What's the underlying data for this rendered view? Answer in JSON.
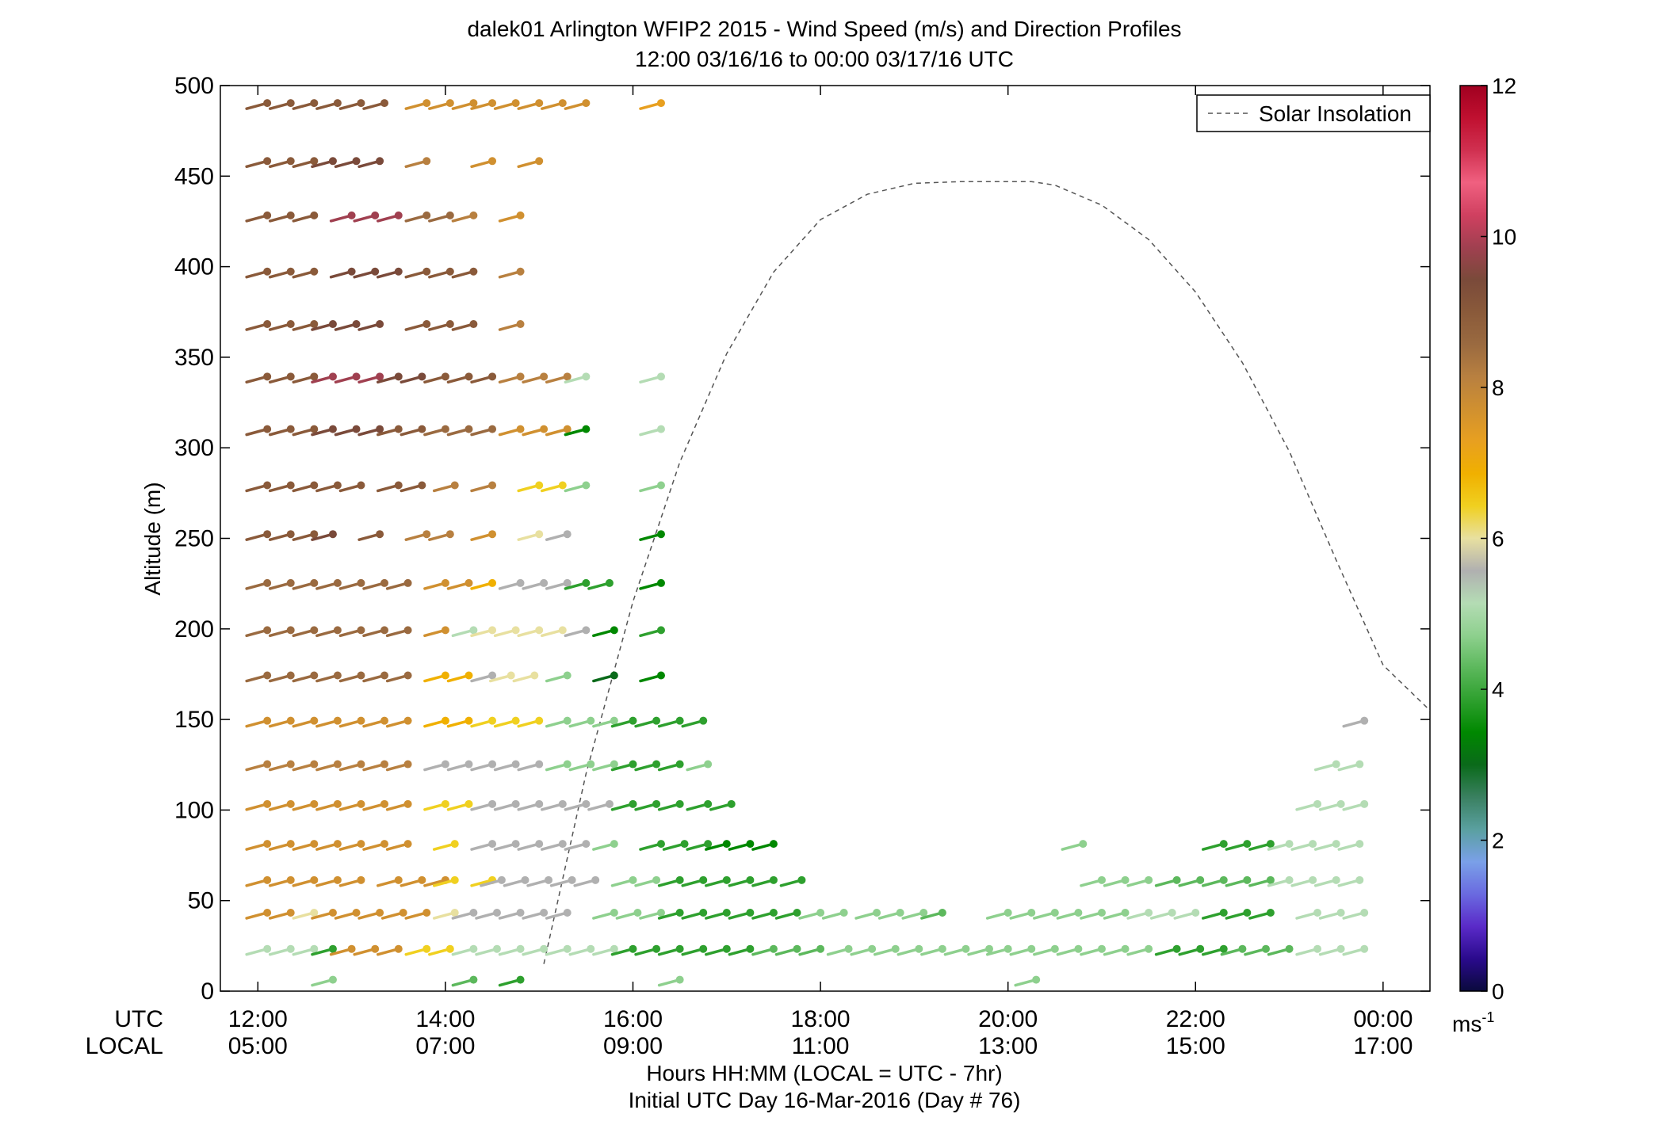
{
  "chart_data": {
    "type": "scatter",
    "title": "dalek01 Arlington WFIP2 2015 - Wind Speed (m/s) and Direction Profiles",
    "subtitle": "12:00 03/16/16 to 00:00 03/17/16  UTC",
    "ylabel": "Altitude (m)",
    "xlabel": "Hours HH:MM  (LOCAL = UTC - 7hr)",
    "xlabel2": "Initial UTC Day 16-Mar-2016 (Day # 76)",
    "row_label_utc": "UTC",
    "row_label_local": "LOCAL",
    "xlim": [
      11.6,
      24.5
    ],
    "ylim": [
      0,
      500
    ],
    "x_ticks": [
      12,
      14,
      16,
      18,
      20,
      22,
      24
    ],
    "x_tick_labels_utc": [
      "12:00",
      "14:00",
      "16:00",
      "18:00",
      "20:00",
      "22:00",
      "00:00"
    ],
    "x_tick_labels_local": [
      "05:00",
      "07:00",
      "09:00",
      "11:00",
      "13:00",
      "15:00",
      "17:00"
    ],
    "y_ticks": [
      0,
      50,
      100,
      150,
      200,
      250,
      300,
      350,
      400,
      450,
      500
    ],
    "y_tick_labels": [
      "0",
      "50",
      "100",
      "150",
      "200",
      "250",
      "300",
      "350",
      "400",
      "450",
      "500"
    ],
    "legend": {
      "label": "Solar Insolation",
      "placement": "top-right",
      "line_color": "#555555"
    },
    "colorbar": {
      "min": 0,
      "max": 12,
      "ticks": [
        0,
        2,
        4,
        6,
        8,
        10,
        12
      ],
      "tick_labels": [
        "0",
        "2",
        "4",
        "6",
        "8",
        "10",
        "12"
      ],
      "unit_label": "ms",
      "unit_exponent": "-1",
      "colors": [
        "#0a0a3c",
        "#2a0a8c",
        "#5a2ac8",
        "#6a6ae0",
        "#7aa0e8",
        "#5aa0a0",
        "#3a8060",
        "#0a6a1a",
        "#008800",
        "#2ea02e",
        "#5cb85c",
        "#8ed08e",
        "#b4dcb4",
        "#b0b0b0",
        "#e8e0a0",
        "#f0d020",
        "#f0b000",
        "#e8a020",
        "#d09030",
        "#b88040",
        "#9a6a40",
        "#8a5a3a",
        "#7a4a3a",
        "#a04050",
        "#d04060",
        "#f06080",
        "#d03050",
        "#c01030",
        "#a00020"
      ]
    },
    "solar_insolation": {
      "x": [
        15.05,
        15.5,
        16.0,
        16.5,
        17.0,
        17.5,
        18.0,
        18.5,
        19.0,
        19.5,
        20.0,
        20.25,
        20.5,
        21.0,
        21.5,
        22.0,
        22.5,
        23.0,
        23.5,
        24.0,
        24.5
      ],
      "y": [
        15,
        120,
        215,
        292,
        352,
        397,
        426,
        440,
        446,
        447,
        447,
        447,
        445,
        434,
        415,
        386,
        347,
        298,
        238,
        180,
        155
      ]
    },
    "altitudes": [
      5,
      22,
      42,
      60,
      80,
      102,
      124,
      148,
      173,
      198,
      224,
      251,
      278,
      309,
      338,
      367,
      396,
      427,
      457,
      489
    ],
    "barbs": [
      {
        "alt": 5,
        "ranges": [
          [
            12.8,
            12.8,
            4.8
          ],
          [
            14.3,
            14.5,
            4.2
          ],
          [
            14.8,
            14.8,
            3.9
          ],
          [
            16.5,
            16.5,
            4.6
          ],
          [
            20.3,
            20.3,
            4.6
          ]
        ]
      },
      {
        "alt": 22,
        "ranges": [
          [
            12.1,
            12.7,
            5.2
          ],
          [
            12.8,
            12.8,
            4.0
          ],
          [
            13.0,
            13.6,
            7.5
          ],
          [
            13.8,
            14.1,
            6.3
          ],
          [
            14.3,
            15.8,
            5.1
          ],
          [
            16.0,
            17.3,
            3.7
          ],
          [
            17.5,
            18.0,
            4.1
          ],
          [
            18.3,
            19.8,
            4.8
          ],
          [
            20.0,
            21.5,
            4.7
          ],
          [
            21.8,
            22.3,
            3.9
          ],
          [
            22.5,
            23.0,
            4.4
          ],
          [
            23.3,
            23.8,
            5.2
          ]
        ]
      },
      {
        "alt": 42,
        "ranges": [
          [
            12.1,
            12.4,
            7.6
          ],
          [
            12.6,
            12.6,
            6.0
          ],
          [
            12.8,
            13.8,
            7.9
          ],
          [
            14.1,
            14.1,
            6.2
          ],
          [
            14.3,
            15.5,
            5.4
          ],
          [
            15.8,
            16.3,
            4.9
          ],
          [
            16.5,
            17.8,
            4.0
          ],
          [
            18.0,
            18.3,
            4.6
          ],
          [
            18.6,
            19.1,
            4.8
          ],
          [
            19.3,
            19.4,
            4.1
          ],
          [
            20.0,
            21.3,
            4.6
          ],
          [
            21.5,
            22.0,
            5.1
          ],
          [
            22.3,
            23.0,
            3.9
          ],
          [
            23.3,
            23.8,
            5.1
          ]
        ]
      },
      {
        "alt": 60,
        "ranges": [
          [
            12.1,
            13.3,
            7.6
          ],
          [
            13.5,
            14.0,
            7.9
          ],
          [
            14.1,
            14.3,
            6.5
          ],
          [
            14.5,
            14.5,
            6.4
          ],
          [
            14.6,
            15.8,
            5.6
          ],
          [
            16.0,
            16.3,
            4.6
          ],
          [
            16.5,
            17.5,
            3.7
          ],
          [
            17.8,
            17.8,
            4.0
          ],
          [
            21.0,
            21.5,
            4.8
          ],
          [
            21.8,
            22.8,
            4.1
          ],
          [
            23.0,
            23.8,
            5.2
          ]
        ]
      },
      {
        "alt": 80,
        "ranges": [
          [
            12.1,
            13.8,
            7.6
          ],
          [
            14.1,
            14.3,
            6.5
          ],
          [
            14.5,
            15.5,
            5.6
          ],
          [
            15.8,
            16.0,
            4.9
          ],
          [
            16.3,
            16.8,
            3.9
          ],
          [
            17.0,
            17.5,
            3.6
          ],
          [
            20.8,
            20.8,
            4.6
          ],
          [
            22.3,
            22.8,
            3.9
          ],
          [
            23.0,
            23.8,
            5.1
          ]
        ]
      },
      {
        "alt": 102,
        "ranges": [
          [
            12.1,
            13.8,
            7.8
          ],
          [
            14.0,
            14.3,
            6.5
          ],
          [
            14.5,
            15.8,
            5.6
          ],
          [
            16.0,
            16.5,
            4.0
          ],
          [
            16.8,
            17.1,
            3.7
          ],
          [
            23.3,
            23.8,
            5.2
          ]
        ]
      },
      {
        "alt": 124,
        "ranges": [
          [
            12.1,
            13.8,
            8.1
          ],
          [
            14.0,
            15.0,
            5.6
          ],
          [
            15.3,
            15.8,
            4.8
          ],
          [
            16.0,
            16.5,
            4.0
          ],
          [
            16.8,
            16.8,
            4.6
          ],
          [
            23.5,
            23.8,
            5.3
          ]
        ]
      },
      {
        "alt": 148,
        "ranges": [
          [
            12.1,
            13.8,
            7.9
          ],
          [
            14.0,
            14.3,
            6.8
          ],
          [
            14.5,
            15.0,
            6.4
          ],
          [
            15.3,
            15.8,
            4.8
          ],
          [
            16.0,
            16.8,
            3.9
          ],
          [
            23.8,
            23.8,
            5.4
          ]
        ]
      },
      {
        "alt": 173,
        "ranges": [
          [
            12.1,
            13.8,
            8.6
          ],
          [
            14.0,
            14.3,
            6.8
          ],
          [
            14.5,
            14.5,
            5.6
          ],
          [
            14.7,
            15.0,
            6.2
          ],
          [
            15.3,
            15.5,
            4.6
          ],
          [
            15.8,
            15.8,
            2.8
          ],
          [
            16.3,
            16.5,
            3.6
          ]
        ]
      },
      {
        "alt": 198,
        "ranges": [
          [
            12.1,
            13.8,
            8.5
          ],
          [
            14.0,
            14.1,
            7.8
          ],
          [
            14.3,
            14.3,
            5.0
          ],
          [
            14.5,
            14.8,
            6.2
          ],
          [
            15.0,
            15.3,
            5.9
          ],
          [
            15.5,
            15.5,
            5.4
          ],
          [
            15.8,
            15.8,
            3.6
          ],
          [
            16.3,
            16.5,
            3.7
          ]
        ]
      },
      {
        "alt": 224,
        "ranges": [
          [
            12.1,
            13.8,
            8.6
          ],
          [
            14.0,
            14.3,
            7.5
          ],
          [
            14.5,
            14.5,
            6.8
          ],
          [
            14.8,
            15.3,
            5.6
          ],
          [
            15.5,
            15.8,
            4.0
          ],
          [
            16.3,
            16.5,
            3.6
          ]
        ]
      },
      {
        "alt": 251,
        "ranges": [
          [
            12.1,
            12.6,
            9.0
          ],
          [
            12.8,
            12.8,
            9.6
          ],
          [
            13.3,
            13.3,
            9.0
          ],
          [
            13.8,
            14.1,
            8.0
          ],
          [
            14.5,
            14.5,
            7.8
          ],
          [
            15.0,
            15.0,
            6.0
          ],
          [
            15.3,
            15.3,
            5.6
          ],
          [
            16.3,
            16.3,
            3.6
          ]
        ]
      },
      {
        "alt": 278,
        "ranges": [
          [
            12.1,
            13.3,
            9.0
          ],
          [
            13.5,
            13.8,
            8.8
          ],
          [
            14.1,
            14.1,
            8.2
          ],
          [
            14.5,
            14.5,
            8.0
          ],
          [
            15.0,
            15.3,
            6.6
          ],
          [
            15.5,
            15.5,
            4.6
          ],
          [
            16.3,
            16.5,
            4.8
          ]
        ]
      },
      {
        "alt": 309,
        "ranges": [
          [
            12.1,
            12.6,
            9.0
          ],
          [
            12.8,
            13.3,
            9.6
          ],
          [
            13.5,
            13.8,
            9.2
          ],
          [
            14.0,
            14.5,
            8.6
          ],
          [
            14.8,
            15.3,
            7.5
          ],
          [
            15.5,
            15.5,
            3.6
          ],
          [
            16.3,
            16.5,
            5.0
          ]
        ]
      },
      {
        "alt": 338,
        "ranges": [
          [
            12.1,
            12.6,
            9.2
          ],
          [
            12.8,
            13.3,
            9.8
          ],
          [
            13.5,
            13.8,
            9.4
          ],
          [
            14.0,
            14.5,
            8.8
          ],
          [
            14.8,
            15.3,
            8.0
          ],
          [
            15.5,
            15.5,
            5.2
          ],
          [
            16.3,
            16.5,
            5.0
          ]
        ]
      },
      {
        "alt": 367,
        "ranges": [
          [
            12.1,
            12.6,
            9.2
          ],
          [
            12.8,
            13.5,
            9.6
          ],
          [
            13.8,
            14.5,
            9.0
          ],
          [
            14.8,
            15.0,
            8.2
          ]
        ]
      },
      {
        "alt": 396,
        "ranges": [
          [
            12.1,
            12.8,
            9.2
          ],
          [
            13.0,
            13.5,
            9.6
          ],
          [
            13.8,
            14.5,
            8.8
          ],
          [
            14.8,
            15.0,
            8.2
          ]
        ]
      },
      {
        "alt": 427,
        "ranges": [
          [
            12.1,
            12.8,
            9.2
          ],
          [
            13.0,
            13.5,
            9.8
          ],
          [
            13.8,
            14.1,
            8.4
          ],
          [
            14.3,
            14.5,
            8.0
          ],
          [
            14.8,
            15.0,
            7.8
          ]
        ]
      },
      {
        "alt": 457,
        "ranges": [
          [
            12.1,
            12.6,
            9.0
          ],
          [
            12.8,
            13.3,
            9.6
          ],
          [
            13.8,
            13.8,
            8.0
          ],
          [
            14.5,
            14.5,
            7.8
          ],
          [
            15.0,
            15.0,
            7.6
          ]
        ]
      },
      {
        "alt": 489,
        "ranges": [
          [
            12.1,
            13.5,
            9.2
          ],
          [
            13.8,
            14.3,
            7.8
          ],
          [
            14.5,
            15.3,
            7.5
          ],
          [
            15.5,
            15.5,
            7.8
          ],
          [
            16.3,
            16.5,
            7.4
          ]
        ]
      }
    ]
  }
}
